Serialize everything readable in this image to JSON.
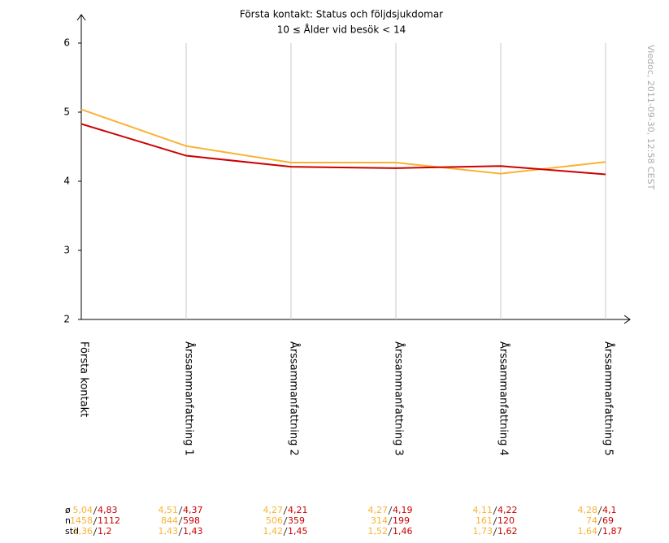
{
  "chart_data": {
    "type": "line",
    "title": "Första kontakt: Status och följdsjukdomar",
    "subtitle": "10 ≤ Ålder vid besök < 14",
    "note": "Viedoc, 2011-09-30, 12:58 CEST",
    "categories": [
      "Första kontakt",
      "Årssammanfattning 1",
      "Årssammanfattning 2",
      "Årssammanfattning 3",
      "Årssammanfattning 4",
      "Årssammanfattning 5"
    ],
    "ylim": [
      2,
      6
    ],
    "yticks": [
      2,
      3,
      4,
      5,
      6
    ],
    "grid": true,
    "stat_labels": [
      "ø",
      "n",
      "std"
    ],
    "series": [
      {
        "color": "#f9b233",
        "values": [
          5.04,
          4.51,
          4.27,
          4.27,
          4.11,
          4.28
        ],
        "value_labels": [
          "5,04",
          "4,51",
          "4,27",
          "4,27",
          "4,11",
          "4,28"
        ],
        "n": [
          1458,
          844,
          506,
          314,
          161,
          74
        ],
        "std": [
          "1,36",
          "1,43",
          "1,42",
          "1,52",
          "1,73",
          "1,64"
        ]
      },
      {
        "color": "#cc0000",
        "values": [
          4.83,
          4.37,
          4.21,
          4.19,
          4.22,
          4.1
        ],
        "value_labels": [
          "4,83",
          "4,37",
          "4,21",
          "4,19",
          "4,22",
          "4,1"
        ],
        "n": [
          1112,
          598,
          359,
          199,
          120,
          69
        ],
        "std": [
          "1,2",
          "1,43",
          "1,45",
          "1,46",
          "1,62",
          "1,87"
        ]
      }
    ]
  }
}
